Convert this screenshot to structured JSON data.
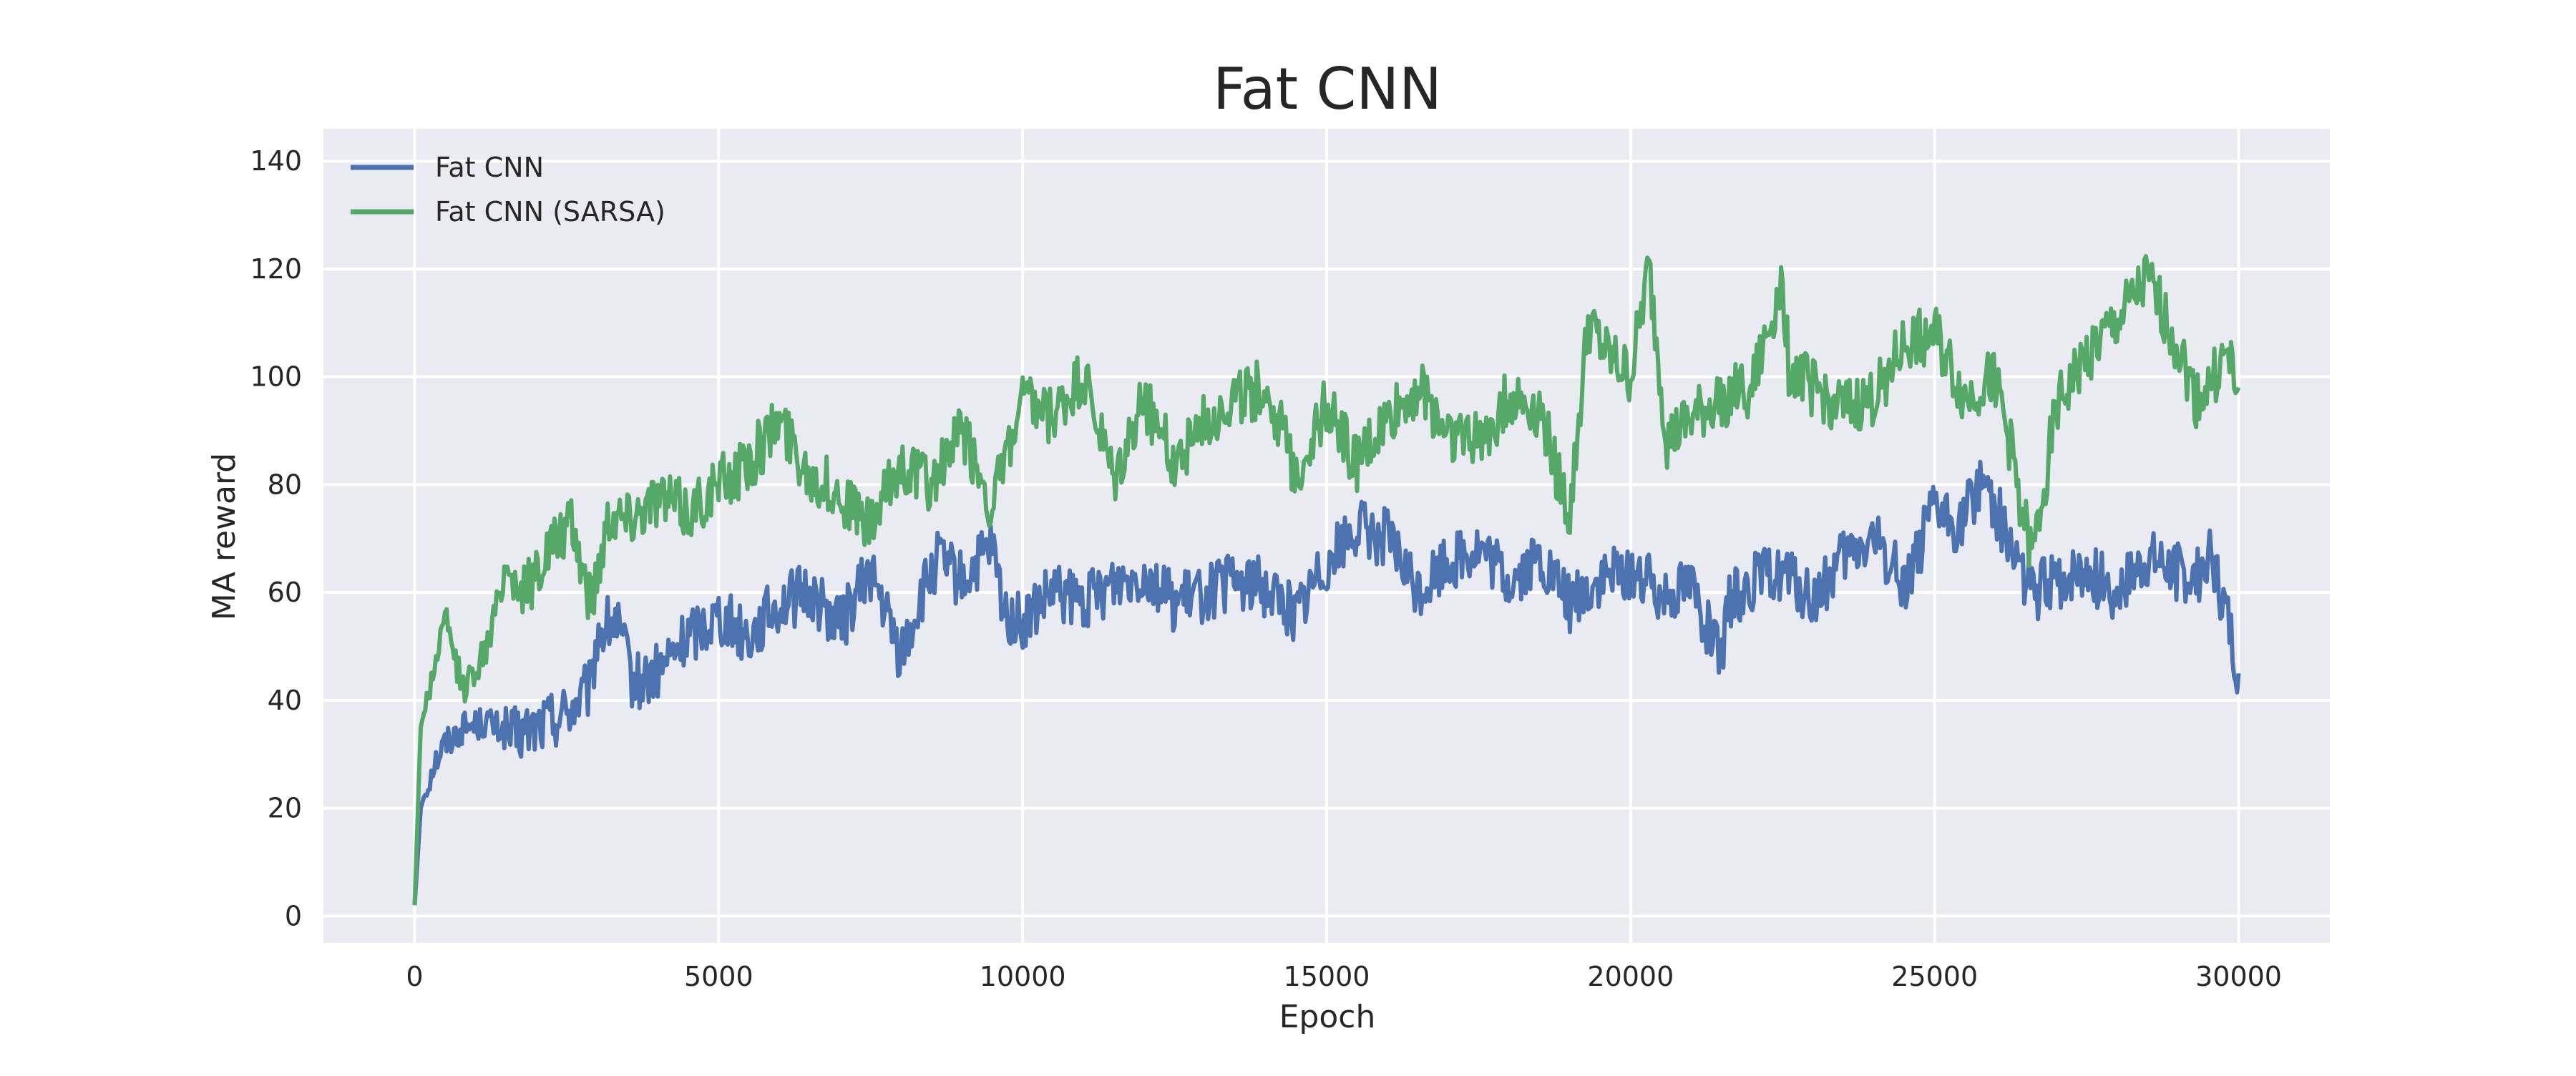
{
  "chart_data": {
    "type": "line",
    "title": "Fat CNN",
    "xlabel": "Epoch",
    "ylabel": "MA reward",
    "xlim": [
      -1500,
      31500
    ],
    "ylim": [
      -5,
      146
    ],
    "x_ticks": [
      0,
      5000,
      10000,
      15000,
      20000,
      25000,
      30000
    ],
    "y_ticks": [
      0,
      20,
      40,
      60,
      80,
      100,
      120,
      140
    ],
    "grid": true,
    "legend_position": "top-left",
    "colors": {
      "background": "#eaeaf2",
      "grid": "#ffffff",
      "series": [
        "#4c72b0",
        "#55a868"
      ]
    },
    "series": [
      {
        "name": "Fat CNN",
        "color": "#4c72b0",
        "x": [
          0,
          100,
          300,
          500,
          800,
          1200,
          1600,
          2000,
          2500,
          2900,
          3000,
          3300,
          3600,
          4000,
          4500,
          5000,
          5500,
          6000,
          6500,
          7000,
          7500,
          8000,
          8300,
          8600,
          9000,
          9500,
          9700,
          10000,
          10500,
          11000,
          11500,
          12000,
          12500,
          13000,
          13500,
          14000,
          14500,
          15000,
          15500,
          16000,
          16500,
          17000,
          17500,
          18000,
          18500,
          19000,
          19500,
          20000,
          20500,
          21000,
          21500,
          21600,
          22000,
          22500,
          23000,
          23500,
          24000,
          24500,
          25000,
          25400,
          25800,
          26200,
          26600,
          27000,
          27500,
          28000,
          28500,
          29000,
          29300,
          29500,
          29800,
          30000
        ],
        "y": [
          2,
          20,
          28,
          32,
          35,
          36,
          33,
          35,
          38,
          42,
          52,
          55,
          43,
          45,
          52,
          56,
          52,
          58,
          60,
          54,
          64,
          48,
          58,
          66,
          62,
          68,
          56,
          54,
          60,
          58,
          62,
          64,
          58,
          60,
          62,
          61,
          56,
          66,
          72,
          70,
          60,
          66,
          68,
          62,
          66,
          58,
          62,
          64,
          60,
          62,
          46,
          58,
          62,
          64,
          58,
          66,
          70,
          62,
          75,
          72,
          82,
          70,
          60,
          62,
          64,
          60,
          66,
          64,
          62,
          68,
          56,
          45
        ]
      },
      {
        "name": "Fat CNN (SARSA)",
        "color": "#55a868",
        "x": [
          0,
          100,
          300,
          500,
          800,
          1200,
          1500,
          1800,
          2200,
          2600,
          2900,
          3200,
          3500,
          4000,
          4500,
          5000,
          5500,
          6000,
          6500,
          7000,
          7500,
          8000,
          8500,
          9000,
          9500,
          10000,
          10500,
          11000,
          11500,
          12000,
          12500,
          13000,
          13500,
          14000,
          14500,
          15000,
          15500,
          16000,
          16500,
          17000,
          17500,
          18000,
          18500,
          19000,
          19300,
          19600,
          20000,
          20300,
          20600,
          21000,
          21500,
          22000,
          22500,
          22600,
          23000,
          23500,
          24000,
          24500,
          25000,
          25500,
          26000,
          26300,
          26600,
          27000,
          27500,
          28000,
          28500,
          29000,
          29300,
          29500,
          29800,
          30000
        ],
        "y": [
          2,
          35,
          45,
          55,
          42,
          50,
          65,
          60,
          68,
          72,
          58,
          75,
          74,
          78,
          75,
          80,
          84,
          92,
          82,
          78,
          72,
          84,
          80,
          90,
          76,
          95,
          92,
          100,
          80,
          96,
          84,
          92,
          96,
          98,
          82,
          95,
          84,
          92,
          98,
          90,
          88,
          96,
          94,
          74,
          110,
          104,
          100,
          120,
          88,
          92,
          96,
          98,
          118,
          102,
          98,
          94,
          96,
          106,
          108,
          96,
          100,
          84,
          66,
          94,
          104,
          110,
          118,
          106,
          96,
          98,
          104,
          98
        ]
      }
    ]
  }
}
